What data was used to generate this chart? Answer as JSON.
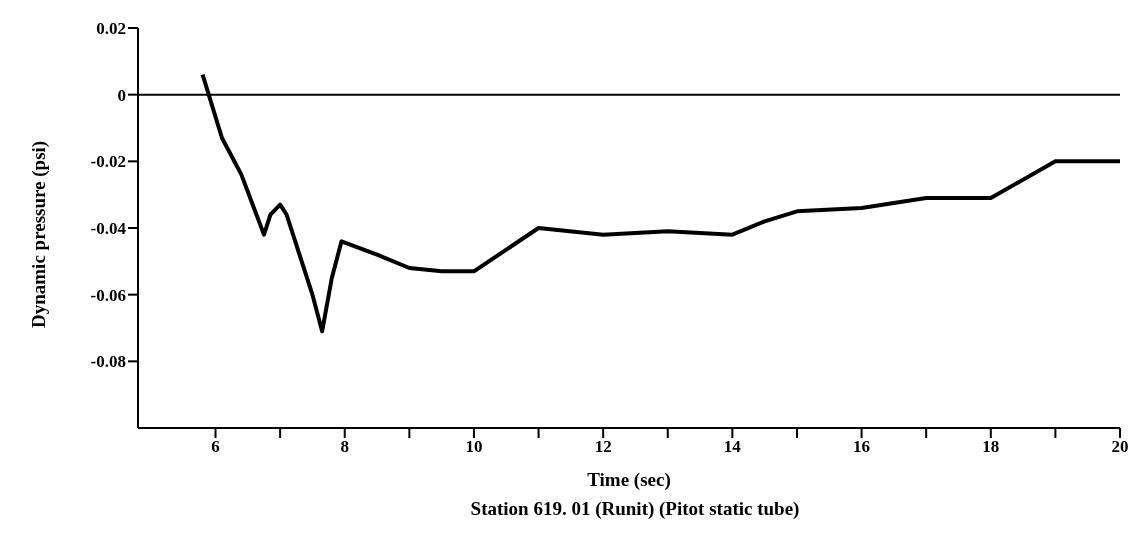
{
  "chart_data": {
    "type": "line",
    "xlabel": "Time (sec)",
    "ylabel": "Dynamic pressure (psi)",
    "annotations": [
      "Station 619. 01 (Runit) (Pitot static tube)"
    ],
    "x": [
      5.8,
      6.1,
      6.4,
      6.75,
      6.85,
      7.0,
      7.1,
      7.5,
      7.65,
      7.8,
      7.95,
      8.5,
      9.0,
      9.5,
      10.0,
      11.0,
      12.0,
      13.0,
      14.0,
      14.5,
      15.0,
      16.0,
      17.0,
      18.0,
      19.0,
      20.0
    ],
    "series": [
      {
        "color": "#000000",
        "values": [
          0.006,
          -0.013,
          -0.024,
          -0.042,
          -0.036,
          -0.033,
          -0.036,
          -0.06,
          -0.071,
          -0.055,
          -0.044,
          -0.048,
          -0.052,
          -0.053,
          -0.053,
          -0.04,
          -0.042,
          -0.041,
          -0.042,
          -0.038,
          -0.035,
          -0.034,
          -0.031,
          -0.031,
          -0.02,
          -0.02
        ]
      }
    ],
    "xlim": [
      4.8,
      20
    ],
    "xticks": [
      6,
      {
        "value": 7,
        "label": null
      },
      8,
      {
        "value": 9,
        "label": null
      },
      10,
      {
        "value": 11,
        "label": null
      },
      12,
      {
        "value": 13,
        "label": null
      },
      14,
      {
        "value": 15,
        "label": null
      },
      16,
      {
        "value": 17,
        "label": null
      },
      18,
      {
        "value": 19,
        "label": null
      },
      20
    ],
    "ylim": [
      -0.1,
      0.02
    ],
    "yticks": [
      {
        "value": 0.02,
        "label": "0.02"
      },
      {
        "value": 0,
        "label": "0"
      },
      {
        "value": -0.02,
        "label": "-0.02"
      },
      {
        "value": -0.04,
        "label": "-0.04"
      },
      {
        "value": -0.06,
        "label": "-0.06"
      },
      {
        "value": -0.08,
        "label": "-0.08"
      }
    ],
    "ref_lines": [
      {
        "axis": "y",
        "value": 0,
        "color": "#000000"
      }
    ],
    "grid": false,
    "legend": false,
    "marker": "none",
    "line_style": "solid"
  }
}
